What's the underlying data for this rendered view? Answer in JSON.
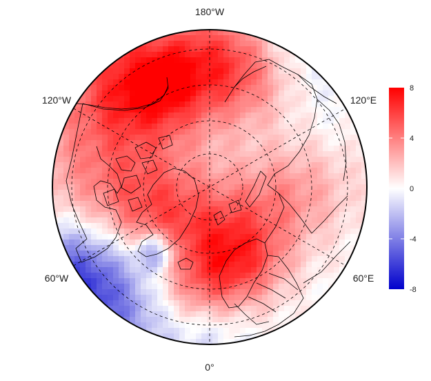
{
  "map": {
    "projection": "north-polar-stereographic",
    "variable_field": "anomaly",
    "colors": {
      "low": "#0000cc",
      "mid": "#ffffff",
      "high": "#ff0000",
      "coast": "#000000",
      "grid": "#000000"
    }
  },
  "longitude_labels": {
    "top": "180°W",
    "upper_left": "120°W",
    "upper_right": "120°E",
    "lower_left": "60°W",
    "lower_right": "60°E",
    "bottom": "0°"
  },
  "legend": {
    "ticks": [
      "8",
      "4",
      "0",
      "-4",
      "-8"
    ],
    "range": [
      -8,
      8
    ]
  }
}
